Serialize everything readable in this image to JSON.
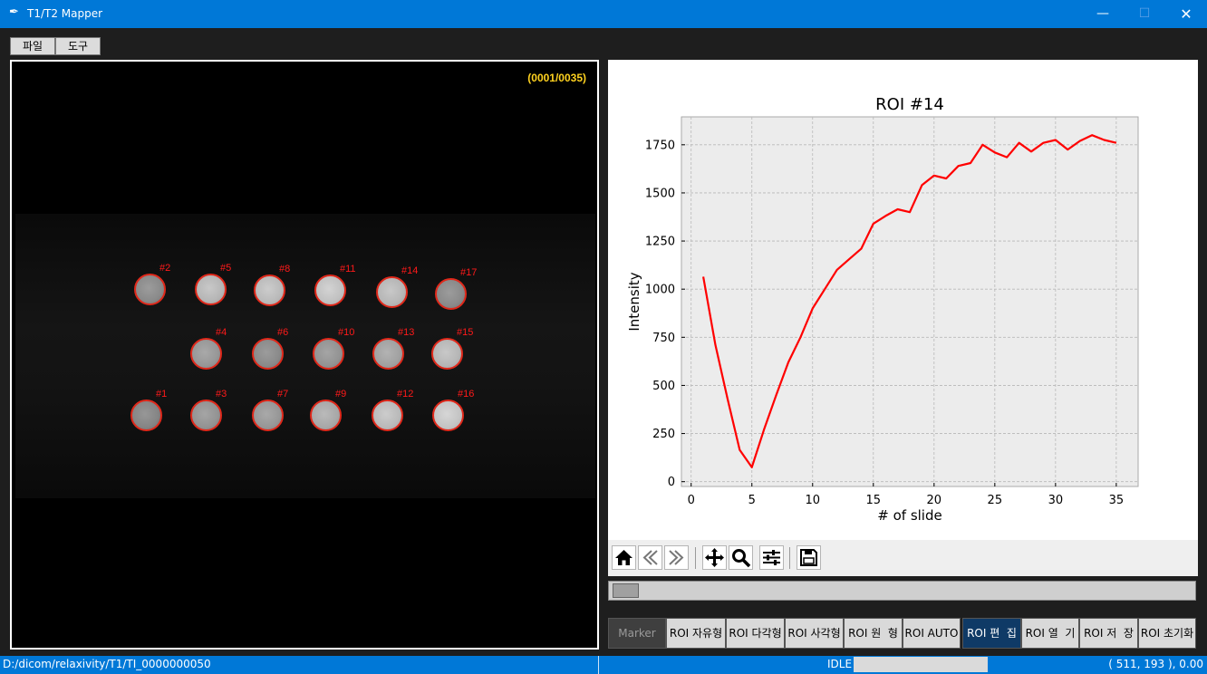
{
  "window": {
    "title": "T1/T2 Mapper",
    "minimize_icon": "minimize-icon",
    "maximize_icon": "maximize-icon",
    "close_icon": "close-icon"
  },
  "menu": {
    "file": "파일",
    "tools": "도구"
  },
  "image": {
    "counter": "(0001/0035)",
    "rois": [
      {
        "label": "#1",
        "level": 0.52
      },
      {
        "label": "#2",
        "level": 0.55
      },
      {
        "label": "#3",
        "level": 0.6
      },
      {
        "label": "#4",
        "level": 0.62
      },
      {
        "label": "#5",
        "level": 0.8
      },
      {
        "label": "#6",
        "level": 0.55
      },
      {
        "label": "#7",
        "level": 0.62
      },
      {
        "label": "#8",
        "level": 0.82
      },
      {
        "label": "#9",
        "level": 0.72
      },
      {
        "label": "#10",
        "level": 0.6
      },
      {
        "label": "#11",
        "level": 0.86
      },
      {
        "label": "#12",
        "level": 0.82
      },
      {
        "label": "#13",
        "level": 0.68
      },
      {
        "label": "#14",
        "level": 0.8
      },
      {
        "label": "#15",
        "level": 0.8
      },
      {
        "label": "#16",
        "level": 0.88
      },
      {
        "label": "#17",
        "level": 0.55
      }
    ]
  },
  "chart_data": {
    "type": "line",
    "title": "ROI #14",
    "xlabel": "# of slide",
    "ylabel": "Intensity",
    "xlim": [
      -0.8,
      36.8
    ],
    "ylim": [
      -25,
      1895
    ],
    "xticks": [
      0,
      5,
      10,
      15,
      20,
      25,
      30,
      35
    ],
    "yticks": [
      0,
      250,
      500,
      750,
      1000,
      1250,
      1500,
      1750
    ],
    "grid": true,
    "series": [
      {
        "color": "#ff0000",
        "x": [
          1,
          2,
          3,
          4,
          5,
          6,
          7,
          8,
          9,
          10,
          11,
          12,
          13,
          14,
          15,
          16,
          17,
          18,
          19,
          20,
          21,
          22,
          23,
          24,
          25,
          26,
          27,
          28,
          29,
          30,
          31,
          32,
          33,
          34,
          35
        ],
        "values": [
          1065,
          710,
          430,
          165,
          75,
          270,
          450,
          620,
          750,
          900,
          1000,
          1100,
          1155,
          1210,
          1340,
          1380,
          1415,
          1400,
          1540,
          1590,
          1575,
          1640,
          1655,
          1750,
          1710,
          1685,
          1760,
          1715,
          1760,
          1775,
          1725,
          1770,
          1800,
          1775,
          1760
        ]
      }
    ]
  },
  "toolbar": {
    "home": "home-icon",
    "back": "arrow-left-icon",
    "forward": "arrow-right-icon",
    "pan": "move-icon",
    "zoom": "zoom-icon",
    "configure": "sliders-icon",
    "save": "save-icon"
  },
  "slider": {
    "value": 0.0
  },
  "roi_buttons": {
    "marker": "Marker",
    "freeform": "ROI 자유형",
    "polygon": "ROI 다각형",
    "rectangle": "ROI 사각형",
    "circle": "ROI 원  형",
    "auto": "ROI AUTO",
    "edit": "ROI 편  집",
    "open": "ROI 열  기",
    "save": "ROI 저  장",
    "reset": "ROI 초기화"
  },
  "status": {
    "path": "D:/dicom/relaxivity/T1/TI_0000000050",
    "state": "IDLE",
    "coords": "( 511, 193 ), 0.00"
  }
}
